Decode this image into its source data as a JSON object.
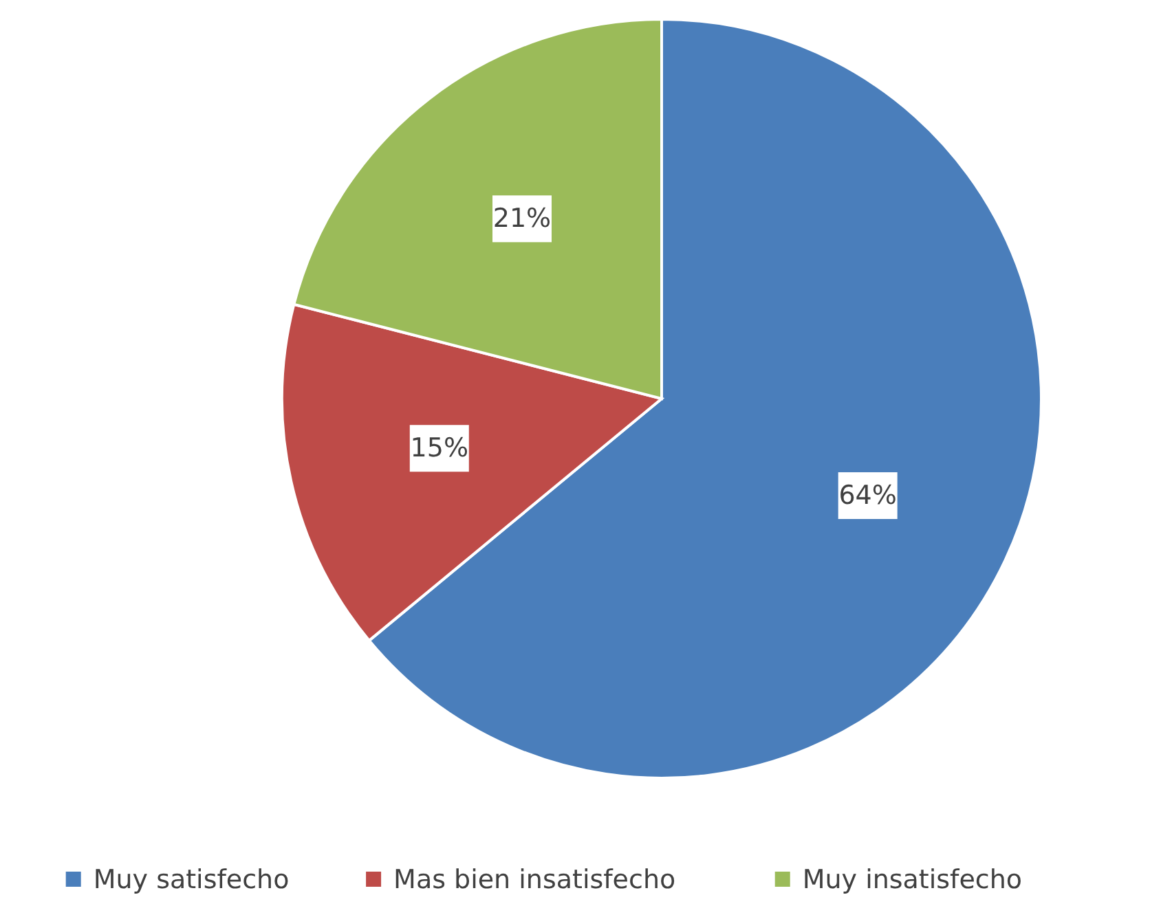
{
  "chart_data": {
    "type": "pie",
    "categories": [
      "Muy satisfecho",
      "Mas bien insatisfecho",
      "Muy insatisfecho"
    ],
    "values": [
      64,
      15,
      21
    ],
    "value_labels": [
      "64%",
      "15%",
      "21%"
    ],
    "colors": [
      "#4a7ebb",
      "#be4b48",
      "#9bbb59"
    ],
    "legend": "bottom"
  }
}
